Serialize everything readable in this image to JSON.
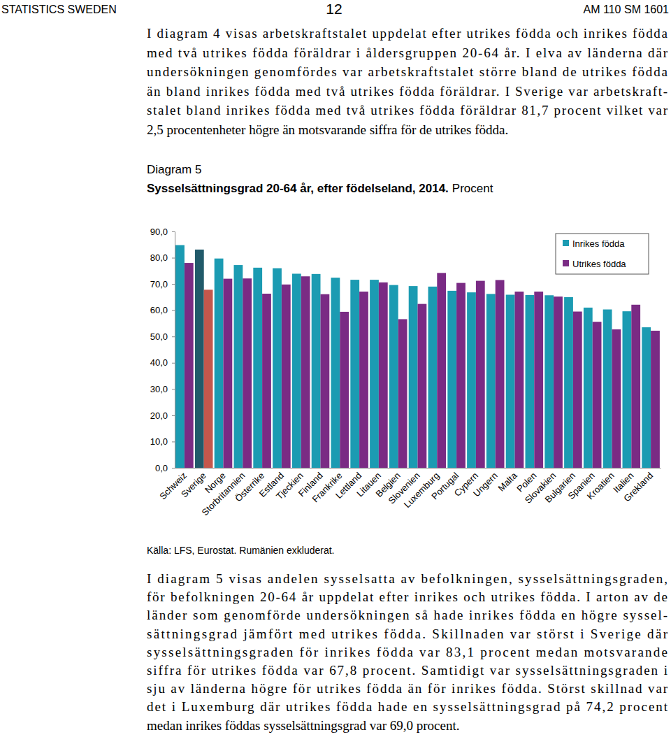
{
  "header": {
    "left": "STATISTICS SWEDEN",
    "center": "12",
    "right": "AM 110 SM 1601"
  },
  "paragraphs": [
    [
      "I diagram 4 visas arbetskraftstalet uppdelat efter utrikes födda och inrikes födda",
      "med två utrikes födda föräldrar i åldersgruppen 20-64 år. I elva av länderna där",
      "undersökningen genomfördes var arbetskraftstalet större bland de utrikes födda",
      "än bland inrikes födda med två utrikes födda föräldrar. I Sverige var arbetskraft-",
      "stalet bland inrikes födda med två utrikes födda föräldrar 81,7 procent vilket var",
      "2,5 procentenheter högre än motsvarande siffra för de utrikes födda."
    ],
    [
      "I diagram 5 visas andelen sysselsatta av befolkningen, sysselsättningsgraden,",
      "för befolkningen 20-64 år uppdelat efter inrikes och utrikes födda. I arton av de",
      "länder som genomförde undersökningen så hade inrikes födda en högre syssel-",
      "sättningsgrad jämfört med utrikes födda. Skillnaden var störst i Sverige där",
      "sysselsättningsgraden för inrikes födda var 83,1 procent medan motsvarande",
      "siffra för utrikes födda var 67,8 procent. Samtidigt var sysselsättningsgraden i",
      "sju av länderna högre för utrikes födda än för inrikes födda. Störst skillnad var",
      "det i Luxemburg där utrikes födda hade en sysselsättningsgrad på 74,2 procent",
      "medan inrikes föddas sysselsättningsgrad var 69,0 procent."
    ]
  ],
  "figure_label": "Diagram 5",
  "source": "Källa: LFS, Eurostat. Rumänien exkluderat.",
  "chart_data": {
    "type": "bar",
    "title": "Sysselsättningsgrad 20-64 år, efter födelseland, 2014.",
    "ylabel": "Procent",
    "categories": [
      "Schweiz",
      "Sverige",
      "Norge",
      "Storbritannien",
      "Österrike",
      "Estland",
      "Tjeckien",
      "Finland",
      "Frankrike",
      "Lettland",
      "Litauen",
      "Belgien",
      "Slovenien",
      "Luxemburg",
      "Portugal",
      "Cypern",
      "Ungern",
      "Malta",
      "Polen",
      "Slovakien",
      "Bulgarien",
      "Spanien",
      "Kroatien",
      "Italien",
      "Grekland"
    ],
    "series": [
      {
        "name": "Inrikes födda",
        "color": "#1b9bb2",
        "colors": [
          "#1b9bb2",
          "#215a6a",
          "#1b9bb2",
          "#1b9bb2",
          "#1b9bb2",
          "#1b9bb2",
          "#1b9bb2",
          "#1b9bb2",
          "#1b9bb2",
          "#1b9bb2",
          "#1b9bb2",
          "#1b9bb2",
          "#1b9bb2",
          "#1b9bb2",
          "#1b9bb2",
          "#1b9bb2",
          "#1b9bb2",
          "#1b9bb2",
          "#1b9bb2",
          "#1b9bb2",
          "#1b9bb2",
          "#1b9bb2",
          "#1b9bb2",
          "#1b9bb2",
          "#1b9bb2"
        ],
        "values": [
          84.8,
          83.1,
          79.7,
          77.2,
          76.2,
          76.0,
          73.9,
          73.8,
          72.4,
          71.6,
          71.6,
          69.6,
          69.2,
          69.0,
          67.4,
          66.8,
          66.2,
          65.9,
          65.8,
          65.7,
          65.0,
          61.0,
          60.3,
          59.6,
          53.5
        ]
      },
      {
        "name": "Utrikes födda",
        "color": "#7a2b84",
        "colors": [
          "#7a2b84",
          "#c4574c",
          "#7a2b84",
          "#7a2b84",
          "#7a2b84",
          "#7a2b84",
          "#7a2b84",
          "#7a2b84",
          "#7a2b84",
          "#7a2b84",
          "#7a2b84",
          "#7a2b84",
          "#7a2b84",
          "#7a2b84",
          "#7a2b84",
          "#7a2b84",
          "#7a2b84",
          "#7a2b84",
          "#7a2b84",
          "#7a2b84",
          "#7a2b84",
          "#7a2b84",
          "#7a2b84",
          "#7a2b84",
          "#7a2b84"
        ],
        "values": [
          78.0,
          67.8,
          72.0,
          72.1,
          66.3,
          69.8,
          72.9,
          66.1,
          59.4,
          67.1,
          70.6,
          56.6,
          62.4,
          74.2,
          70.4,
          71.2,
          71.5,
          67.1,
          67.1,
          65.2,
          59.5,
          55.6,
          52.7,
          62.1,
          52.2
        ]
      }
    ],
    "ylim": [
      0,
      90
    ],
    "yticks": [
      {
        "value": 0,
        "label": "0,0"
      },
      {
        "value": 10,
        "label": "10,0"
      },
      {
        "value": 20,
        "label": "20,0"
      },
      {
        "value": 30,
        "label": "30,0"
      },
      {
        "value": 40,
        "label": "40,0"
      },
      {
        "value": 50,
        "label": "50,0"
      },
      {
        "value": 60,
        "label": "60,0"
      },
      {
        "value": 70,
        "label": "70,0"
      },
      {
        "value": 80,
        "label": "80,0"
      },
      {
        "value": 90,
        "label": "90,0"
      }
    ],
    "grid": false,
    "legend": "upper right"
  }
}
